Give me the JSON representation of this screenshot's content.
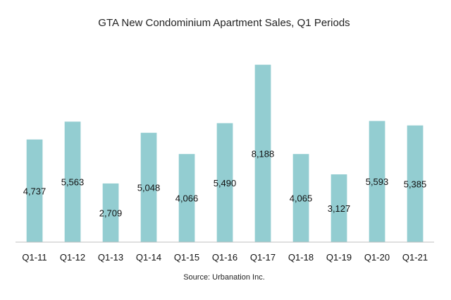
{
  "chart_data": {
    "type": "bar",
    "title": "GTA New Condominium Apartment Sales, Q1 Periods",
    "categories": [
      "Q1-11",
      "Q1-12",
      "Q1-13",
      "Q1-14",
      "Q1-15",
      "Q1-16",
      "Q1-17",
      "Q1-18",
      "Q1-19",
      "Q1-20",
      "Q1-21"
    ],
    "values": [
      4737,
      5563,
      2709,
      5048,
      4066,
      5490,
      8188,
      4065,
      3127,
      5593,
      5385
    ],
    "data_labels": [
      "4,737",
      "5,563",
      "2,709",
      "5,048",
      "4,066",
      "5,490",
      "8,188",
      "4,065",
      "3,127",
      "5,593",
      "5,385"
    ],
    "xlabel": "",
    "ylabel": "",
    "ylim": [
      0,
      8700
    ],
    "grid": false,
    "legend": "none",
    "bar_color": "#93cdd1",
    "axis_color": "#bfbfbf",
    "source": "Source: Urbanation Inc."
  }
}
